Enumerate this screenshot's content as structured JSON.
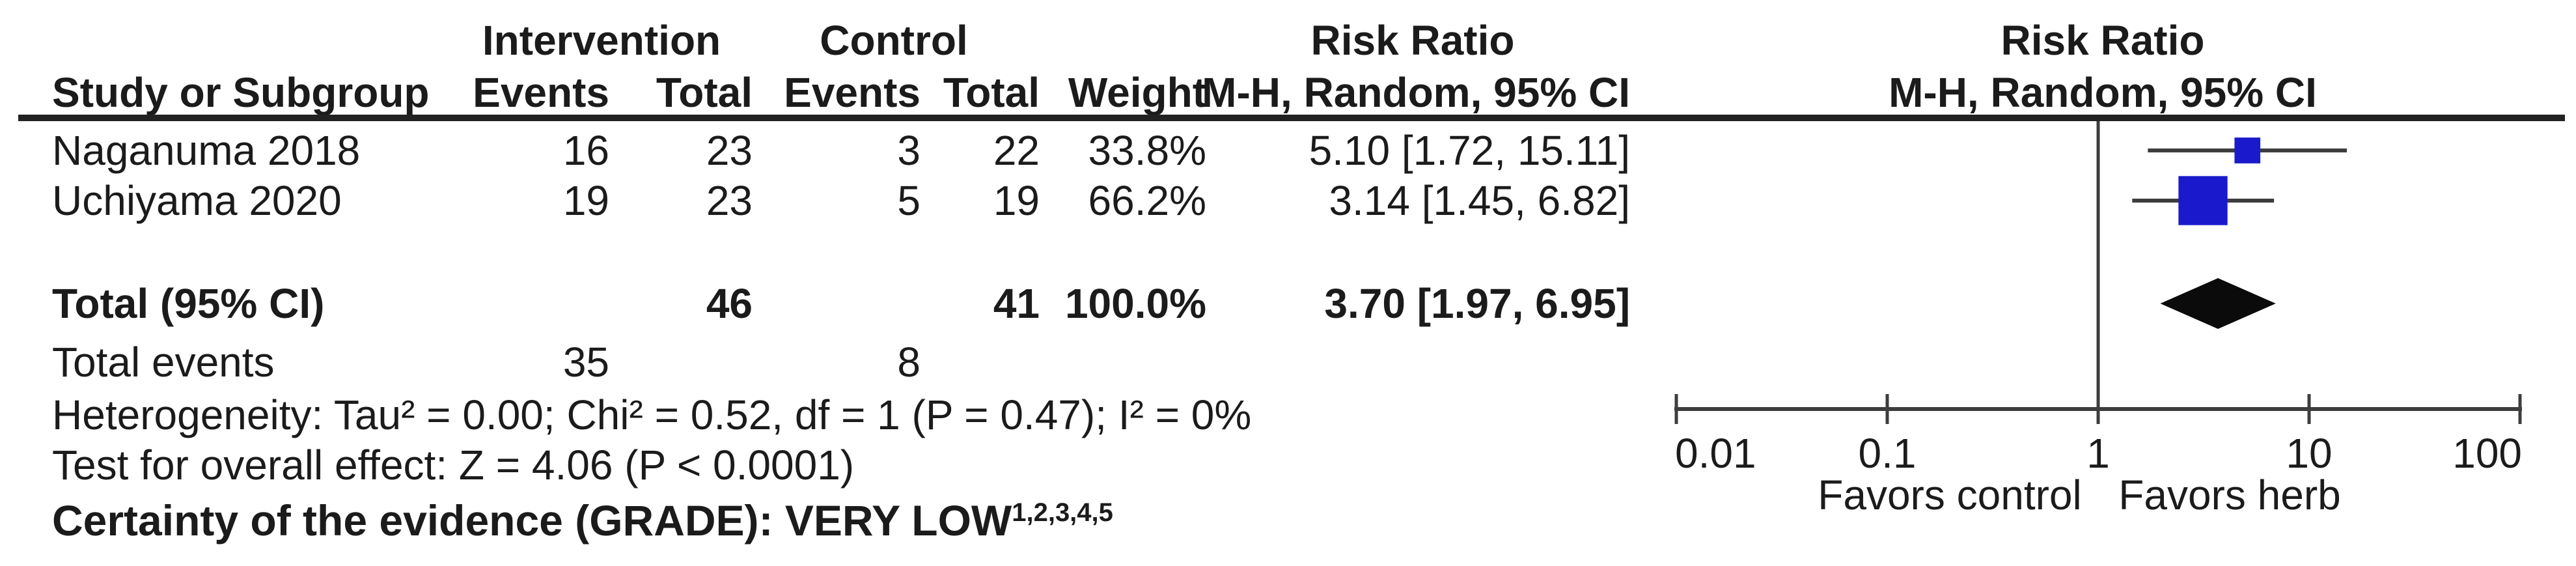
{
  "colors": {
    "marker_blue": "#1a1acc",
    "line_gray": "#3d3d3d",
    "rule_black": "#222222",
    "diamond_black": "#0b0b0b",
    "text_black": "#1b1b1b"
  },
  "table": {
    "group_headers": {
      "intervention": "Intervention",
      "control": "Control",
      "risk_ratio_text": "Risk Ratio",
      "risk_ratio_plot": "Risk Ratio"
    },
    "col_headers": {
      "study": "Study or Subgroup",
      "int_events": "Events",
      "int_total": "Total",
      "ctrl_events": "Events",
      "ctrl_total": "Total",
      "weight": "Weight",
      "mh_text": "M-H, Random, 95% CI",
      "mh_plot": "M-H, Random, 95% CI"
    },
    "rows": [
      {
        "study": "Naganuma 2018",
        "int_events": "16",
        "int_total": "23",
        "ctrl_events": "3",
        "ctrl_total": "22",
        "weight": "33.8%",
        "rr": "5.10 [1.72, 15.11]"
      },
      {
        "study": "Uchiyama 2020",
        "int_events": "19",
        "int_total": "23",
        "ctrl_events": "5",
        "ctrl_total": "19",
        "weight": "66.2%",
        "rr": "3.14 [1.45, 6.82]"
      }
    ],
    "total_row": {
      "label": "Total (95% CI)",
      "int_total": "46",
      "ctrl_total": "41",
      "weight": "100.0%",
      "rr": "3.70 [1.97, 6.95]"
    },
    "total_events_row": {
      "label": "Total events",
      "int_events": "35",
      "ctrl_events": "8"
    }
  },
  "footnotes": {
    "heterogeneity": "Heterogeneity: Tau² = 0.00; Chi² = 0.52, df = 1 (P = 0.47); I² = 0%",
    "overall_effect": "Test for overall effect: Z = 4.06 (P < 0.0001)",
    "certainty": "Certainty of the evidence (GRADE): VERY LOW",
    "certainty_superscript": "1,2,3,4,5"
  },
  "chart_data": {
    "type": "forest",
    "effect_measure": "Risk Ratio, M-H, Random, 95% CI",
    "x_scale": "log10",
    "x_range": [
      0.01,
      100
    ],
    "x_ticks": [
      0.01,
      0.1,
      1,
      10,
      100
    ],
    "tick_labels": [
      "0.01",
      "0.1",
      "1",
      "10",
      "100"
    ],
    "null_line": 1,
    "studies": [
      {
        "name": "Naganuma 2018",
        "rr": 5.1,
        "ci_low": 1.72,
        "ci_high": 15.11,
        "weight_pct": 33.8
      },
      {
        "name": "Uchiyama 2020",
        "rr": 3.14,
        "ci_low": 1.45,
        "ci_high": 6.82,
        "weight_pct": 66.2
      }
    ],
    "total": {
      "rr": 3.7,
      "ci_low": 1.97,
      "ci_high": 6.95
    },
    "favors_left": "Favors control",
    "favors_right": "Favors herb"
  }
}
